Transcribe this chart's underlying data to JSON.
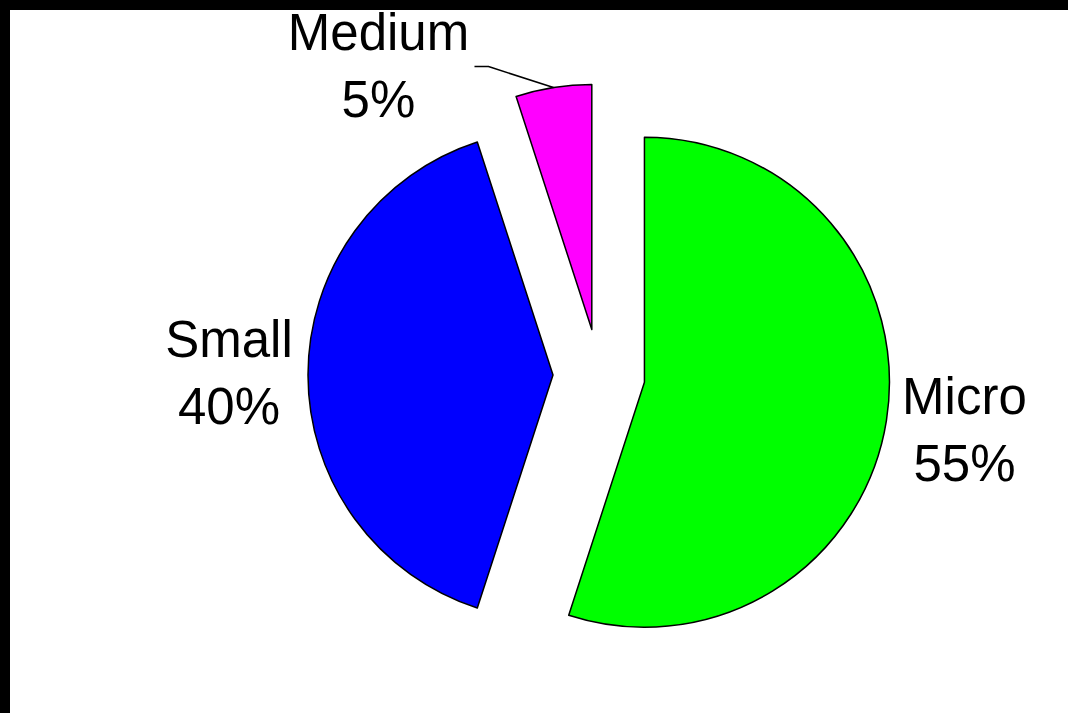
{
  "chart_data": {
    "type": "pie",
    "categories": [
      "Micro",
      "Small",
      "Medium"
    ],
    "values": [
      55,
      40,
      5
    ],
    "colors": [
      "#00ff00",
      "#0000ff",
      "#ff00ff"
    ],
    "value_labels": [
      "55%",
      "40%",
      "5%"
    ]
  }
}
